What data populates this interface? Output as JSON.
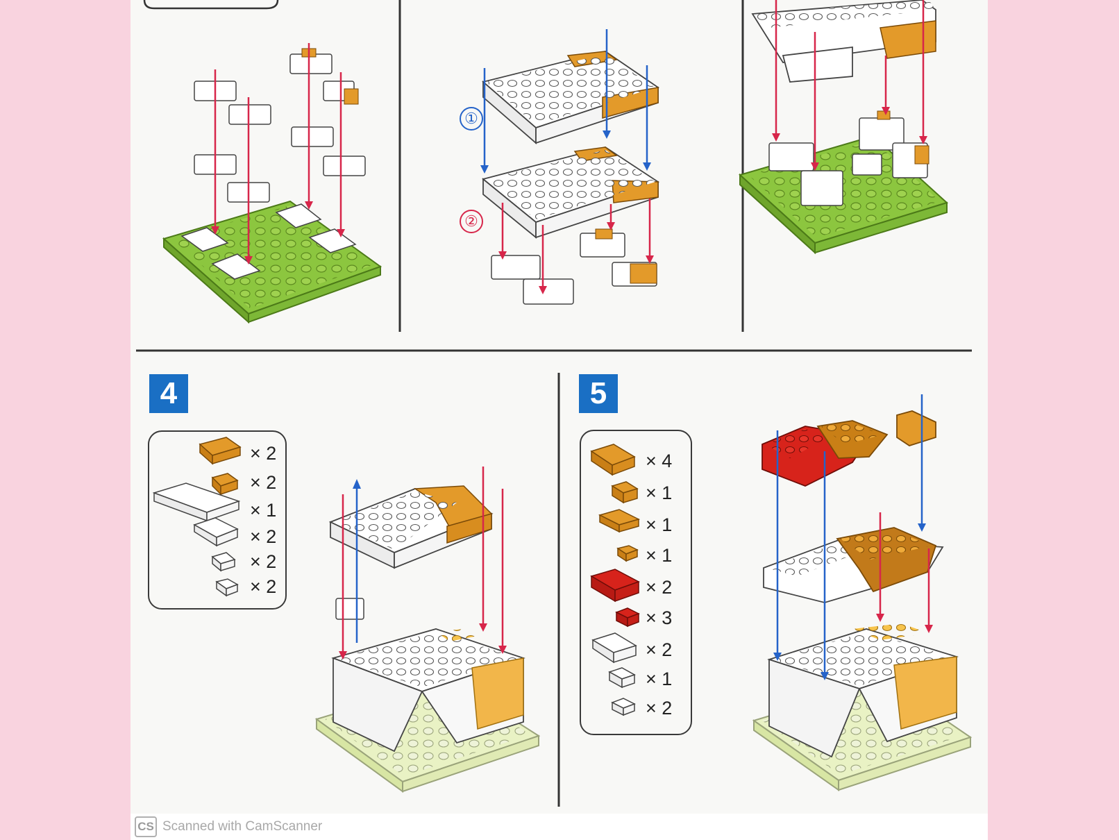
{
  "steps": {
    "step4": {
      "number": "4"
    },
    "step5": {
      "number": "5"
    }
  },
  "substeps": {
    "one": "①",
    "two": "②"
  },
  "step4_parts": [
    {
      "part": "brick-2x4-orange",
      "qty": "× 2"
    },
    {
      "part": "brick-corner-orange",
      "qty": "× 2"
    },
    {
      "part": "brick-2x8-white",
      "qty": "× 1"
    },
    {
      "part": "brick-2x4-white",
      "qty": "× 2"
    },
    {
      "part": "brick-corner-white",
      "qty": "× 2"
    },
    {
      "part": "brick-2x2-white",
      "qty": "× 2"
    }
  ],
  "step5_parts": [
    {
      "part": "brick-2x4-orange",
      "qty": "× 4"
    },
    {
      "part": "brick-2x2-orange",
      "qty": "× 1"
    },
    {
      "part": "brick-2x4-orange-low",
      "qty": "× 1"
    },
    {
      "part": "brick-1x2-orange",
      "qty": "× 1"
    },
    {
      "part": "brick-2x4-red",
      "qty": "× 2"
    },
    {
      "part": "brick-1x2-red",
      "qty": "× 3"
    },
    {
      "part": "brick-2x4-white",
      "qty": "× 2"
    },
    {
      "part": "brick-2x2-white",
      "qty": "× 1"
    },
    {
      "part": "brick-corner-white",
      "qty": "× 2"
    }
  ],
  "colors": {
    "badge": "#1a6fc4",
    "arrow_red": "#d7264a",
    "arrow_blue": "#2563c9",
    "baseplate_green": "#8cc63f",
    "orange": "#e39a2a",
    "red": "#d7231b"
  },
  "footer": {
    "logo": "CS",
    "text": "Scanned with CamScanner"
  }
}
